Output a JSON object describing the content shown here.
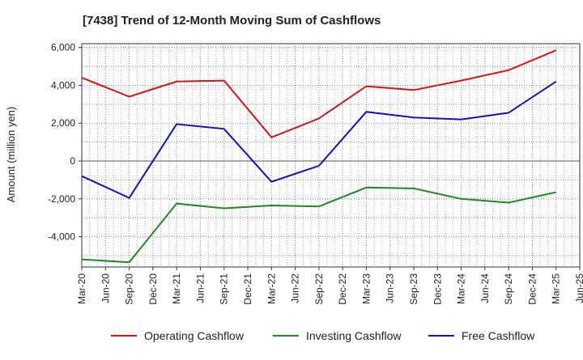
{
  "chart_data": {
    "type": "line",
    "title": "[7438]  Trend of 12-Month Moving Sum of Cashflows",
    "ylabel": "Amount (million yen)",
    "xlabel": "",
    "x_ticks": [
      "Mar-20",
      "Jun-20",
      "Sep-20",
      "Dec-20",
      "Mar-21",
      "Jun-21",
      "Sep-21",
      "Dec-21",
      "Mar-22",
      "Jun-22",
      "Sep-22",
      "Dec-22",
      "Mar-23",
      "Jun-23",
      "Sep-23",
      "Dec-23",
      "Mar-24",
      "Jun-24",
      "Sep-24",
      "Dec-24",
      "Mar-25",
      "Jun-25"
    ],
    "y_ticks": [
      6000,
      4000,
      2000,
      0,
      -2000,
      -4000
    ],
    "y_tick_labels": [
      "6,000",
      "4,000",
      "2,000",
      "0",
      "-2,000",
      "-4,000"
    ],
    "ylim": [
      -5600,
      6200
    ],
    "grid": true,
    "legend_position": "bottom",
    "series": [
      {
        "name": "Operating Cashflow",
        "color": "#dd1111",
        "points": [
          [
            "Mar-20",
            4400
          ],
          [
            "Sep-20",
            3400
          ],
          [
            "Mar-21",
            4200
          ],
          [
            "Sep-21",
            4250
          ],
          [
            "Mar-22",
            1250
          ],
          [
            "Sep-22",
            2250
          ],
          [
            "Mar-23",
            3950
          ],
          [
            "Sep-23",
            3750
          ],
          [
            "Mar-24",
            4250
          ],
          [
            "Sep-24",
            4800
          ],
          [
            "Mar-25",
            5850
          ]
        ]
      },
      {
        "name": "Investing Cashflow",
        "color": "#228822",
        "points": [
          [
            "Mar-20",
            -5200
          ],
          [
            "Sep-20",
            -5350
          ],
          [
            "Mar-21",
            -2250
          ],
          [
            "Sep-21",
            -2500
          ],
          [
            "Mar-22",
            -2350
          ],
          [
            "Sep-22",
            -2400
          ],
          [
            "Mar-23",
            -1400
          ],
          [
            "Sep-23",
            -1450
          ],
          [
            "Mar-24",
            -2000
          ],
          [
            "Sep-24",
            -2200
          ],
          [
            "Mar-25",
            -1650
          ]
        ]
      },
      {
        "name": "Free Cashflow",
        "color": "#1111cc",
        "points": [
          [
            "Mar-20",
            -800
          ],
          [
            "Sep-20",
            -1950
          ],
          [
            "Mar-21",
            1950
          ],
          [
            "Sep-21",
            1700
          ],
          [
            "Mar-22",
            -1100
          ],
          [
            "Sep-22",
            -250
          ],
          [
            "Mar-23",
            2600
          ],
          [
            "Sep-23",
            2300
          ],
          [
            "Mar-24",
            2200
          ],
          [
            "Sep-24",
            2550
          ],
          [
            "Mar-25",
            4200
          ]
        ]
      }
    ]
  }
}
